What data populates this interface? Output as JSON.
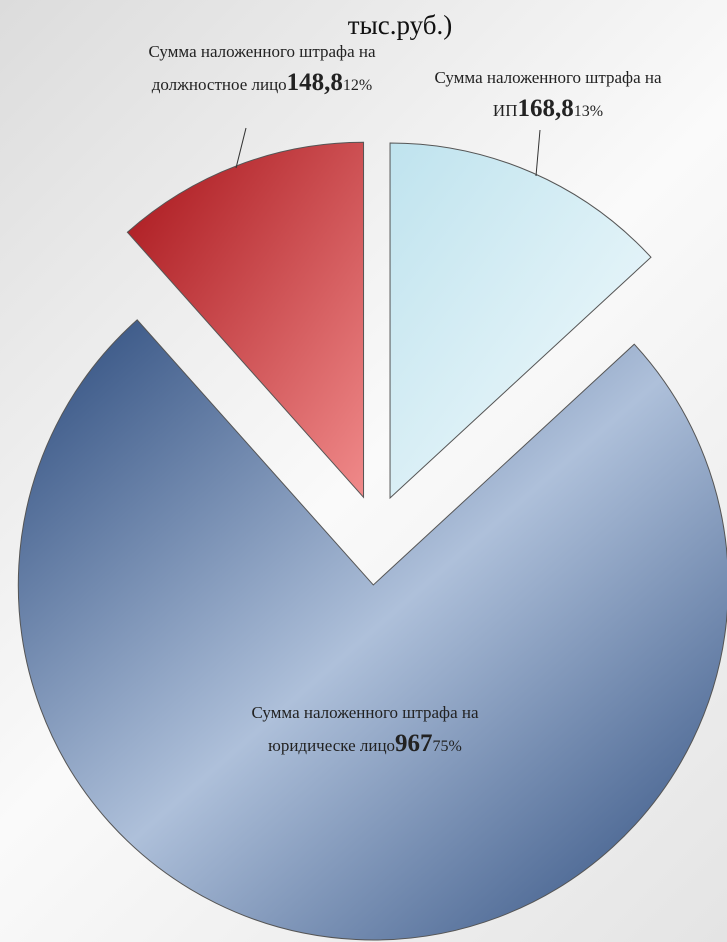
{
  "chart_data": {
    "type": "pie",
    "title": "тыс.руб.)",
    "categories": [
      "Сумма наложенного штрафа на ИП",
      "Сумма наложенного штрафа на юридическе лицо",
      "Сумма наложенного штрафа на должностное лицо"
    ],
    "values": [
      168.8,
      967,
      148.8
    ],
    "value_labels": [
      "168,8",
      "967",
      "148,8"
    ],
    "percents": [
      13,
      75,
      12
    ],
    "percent_labels": [
      "13%",
      "75%",
      "12%"
    ],
    "colors": [
      [
        "#bfe3ee",
        "#f4fbfd"
      ],
      [
        "#2b4a7c",
        "#aec0da"
      ],
      [
        "#a8141a",
        "#f08a8a"
      ]
    ]
  }
}
